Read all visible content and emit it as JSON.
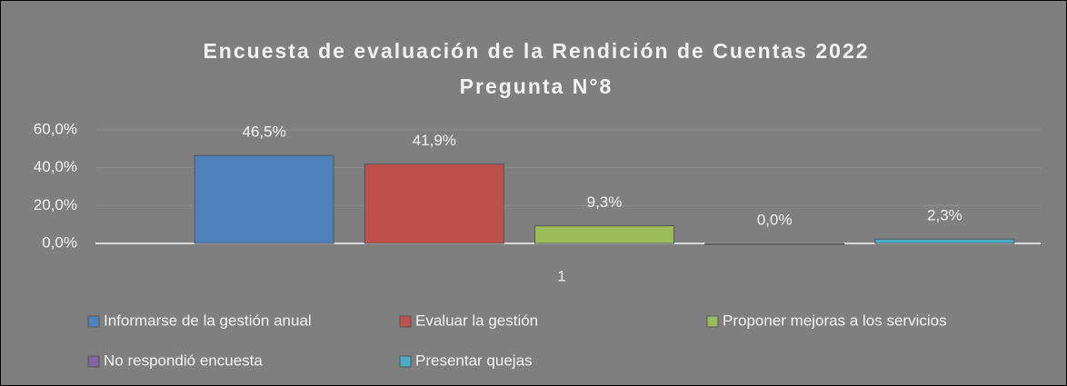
{
  "chart_data": {
    "type": "bar",
    "title": [
      "Encuesta de evaluación de la Rendición de Cuentas 2022",
      "Pregunta N°8"
    ],
    "categories": [
      "1"
    ],
    "series": [
      {
        "name": "Informarse de la gestión anual",
        "color": "#4f81bd",
        "values": [
          46.5
        ],
        "value_labels": [
          "46,5%"
        ]
      },
      {
        "name": "Evaluar la gestión",
        "color": "#c0504d",
        "values": [
          41.9
        ],
        "value_labels": [
          "41,9%"
        ]
      },
      {
        "name": "Proponer mejoras a los servicios",
        "color": "#9bbb59",
        "values": [
          9.3
        ],
        "value_labels": [
          "9,3%"
        ]
      },
      {
        "name": "No respondió encuesta",
        "color": "#8064a2",
        "values": [
          0.0
        ],
        "value_labels": [
          "0,0%"
        ]
      },
      {
        "name": "Presentar quejas",
        "color": "#4bacc6",
        "values": [
          2.3
        ],
        "value_labels": [
          "2,3%"
        ]
      }
    ],
    "ylim": [
      0,
      60
    ],
    "yticks": [
      {
        "value": 0,
        "label": "0,0%"
      },
      {
        "value": 20,
        "label": "20,0%"
      },
      {
        "value": 40,
        "label": "40,0%"
      },
      {
        "value": 60,
        "label": "60,0%"
      }
    ],
    "grid": true,
    "legend": "bottom"
  }
}
